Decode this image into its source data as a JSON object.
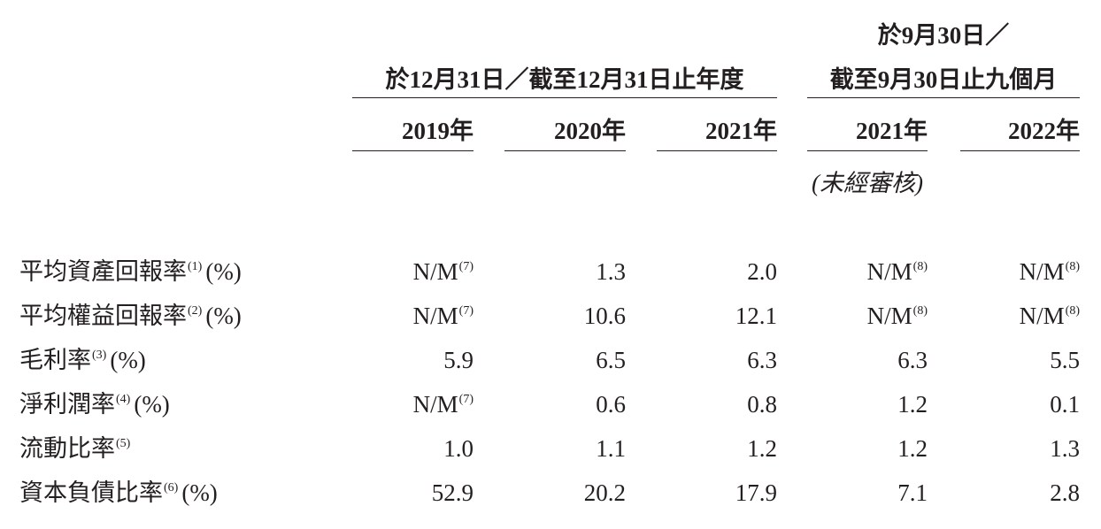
{
  "header": {
    "groups": [
      {
        "lines": [
          "於12月31日／截至12月31日止年度"
        ]
      },
      {
        "lines": [
          "於9月30日／",
          "截至9月30日止九個月"
        ]
      }
    ],
    "years": [
      "2019年",
      "2020年",
      "2021年",
      "2021年",
      "2022年"
    ],
    "unaudited": "(未經審核)"
  },
  "table": {
    "rows": [
      {
        "label": "平均資產回報率",
        "note": "(1)",
        "unit": "(%)",
        "cells": [
          {
            "text": "N/M",
            "note": "(7)"
          },
          {
            "text": "1.3"
          },
          {
            "text": "2.0"
          },
          {
            "text": "N/M",
            "note": "(8)"
          },
          {
            "text": "N/M",
            "note": "(8)"
          }
        ]
      },
      {
        "label": "平均權益回報率",
        "note": "(2)",
        "unit": "(%)",
        "cells": [
          {
            "text": "N/M",
            "note": "(7)"
          },
          {
            "text": "10.6"
          },
          {
            "text": "12.1"
          },
          {
            "text": "N/M",
            "note": "(8)"
          },
          {
            "text": "N/M",
            "note": "(8)"
          }
        ]
      },
      {
        "label": "毛利率",
        "note": "(3)",
        "unit": "(%)",
        "cells": [
          {
            "text": "5.9"
          },
          {
            "text": "6.5"
          },
          {
            "text": "6.3"
          },
          {
            "text": "6.3"
          },
          {
            "text": "5.5"
          }
        ]
      },
      {
        "label": "淨利潤率",
        "note": "(4)",
        "unit": "(%)",
        "cells": [
          {
            "text": "N/M",
            "note": "(7)"
          },
          {
            "text": "0.6"
          },
          {
            "text": "0.8"
          },
          {
            "text": "1.2"
          },
          {
            "text": "0.1"
          }
        ]
      },
      {
        "label": "流動比率",
        "note": "(5)",
        "cells": [
          {
            "text": "1.0"
          },
          {
            "text": "1.1"
          },
          {
            "text": "1.2"
          },
          {
            "text": "1.2"
          },
          {
            "text": "1.3"
          }
        ]
      },
      {
        "label": "資本負債比率",
        "note": "(6)",
        "unit": "(%)",
        "cells": [
          {
            "text": "52.9"
          },
          {
            "text": "20.2"
          },
          {
            "text": "17.9"
          },
          {
            "text": "7.1"
          },
          {
            "text": "2.8"
          }
        ]
      }
    ]
  }
}
